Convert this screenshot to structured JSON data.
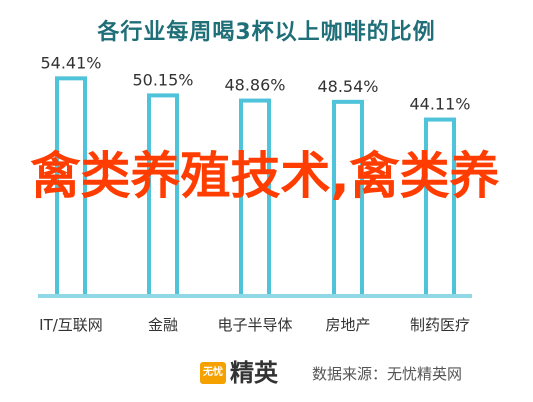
{
  "chart_data": {
    "type": "bar",
    "title": "各行业每周喝3杯以上咖啡的比例",
    "categories": [
      "IT/互联网",
      "金融",
      "电子半导体",
      "房地产",
      "制药医疗"
    ],
    "values": [
      54.41,
      50.15,
      48.86,
      48.54,
      44.11
    ],
    "value_labels": [
      "54.41%",
      "50.15%",
      "48.86%",
      "48.54%",
      "44.11%"
    ],
    "ylim": [
      0,
      60
    ],
    "grid": false,
    "colors": {
      "bar_stroke": "#4fc3d9",
      "title": "#1f6f78",
      "axis": "#8fd8e6"
    }
  },
  "overlay_text": "禽类养殖技术,禽类养",
  "footer": {
    "logo_badge": "无忧",
    "logo_name": "精英",
    "source": "数据来源：无忧精英网"
  }
}
